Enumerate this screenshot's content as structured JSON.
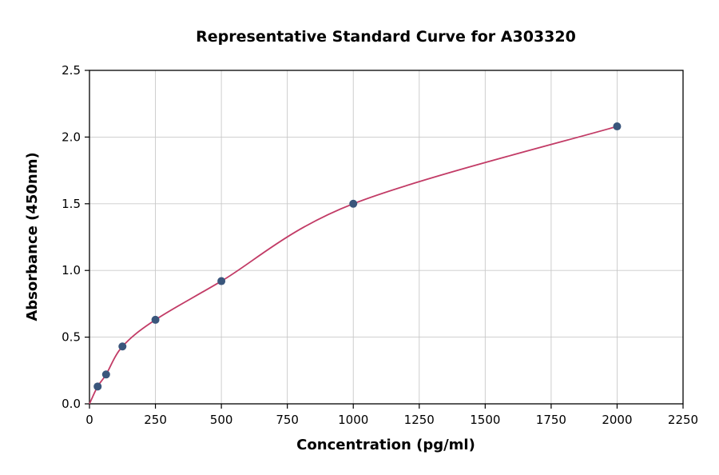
{
  "chart_data": {
    "type": "scatter",
    "title": "Representative Standard Curve for A303320",
    "xlabel": "Concentration (pg/ml)",
    "ylabel": "Absorbance (450nm)",
    "xlim": [
      0,
      2250
    ],
    "ylim": [
      0,
      2.5
    ],
    "x_ticks": [
      0,
      250,
      500,
      750,
      1000,
      1250,
      1500,
      1750,
      2000,
      2250
    ],
    "y_ticks": [
      0.0,
      0.5,
      1.0,
      1.5,
      2.0,
      2.5
    ],
    "grid": true,
    "legend": "none",
    "curve_anchor": {
      "x": 0,
      "y": 0
    },
    "points": [
      {
        "x": 31,
        "y": 0.13
      },
      {
        "x": 63,
        "y": 0.22
      },
      {
        "x": 125,
        "y": 0.43
      },
      {
        "x": 250,
        "y": 0.63
      },
      {
        "x": 500,
        "y": 0.92
      },
      {
        "x": 1000,
        "y": 1.5
      },
      {
        "x": 2000,
        "y": 2.08
      }
    ],
    "colors": {
      "point": "#3a567c",
      "curve": "#c23b66",
      "grid": "#c9c9c9",
      "axis": "#000000",
      "background": "#ffffff"
    }
  }
}
